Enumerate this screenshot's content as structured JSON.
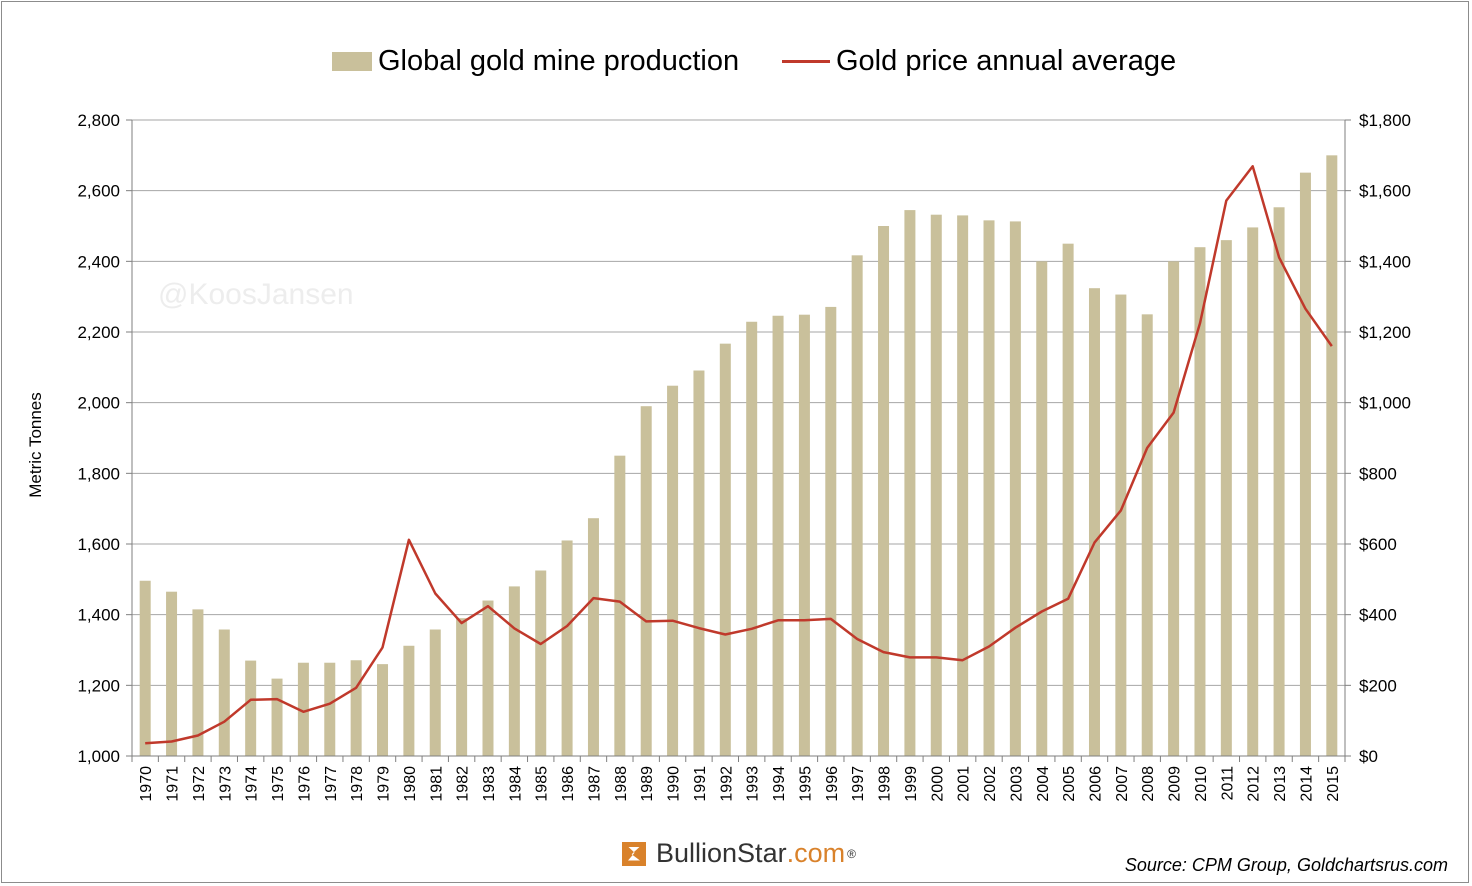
{
  "legend": {
    "bar_label": "Global gold mine production",
    "line_label": "Gold price annual average"
  },
  "watermark": "@KoosJansen",
  "logo": {
    "name": "BullionStar",
    "suffix": ".com",
    "mark": "®"
  },
  "source": "Source: CPM Group, Goldchartsrus.com",
  "colors": {
    "bars": "#c9c09b",
    "line": "#c0392b",
    "grid": "#a6a6a6"
  },
  "chart_data": {
    "type": "bar",
    "title": "",
    "ylabel": "Metric Tonnes",
    "ylabel_right": "",
    "ylim": [
      1000,
      2800
    ],
    "ylim_right": [
      0,
      1800
    ],
    "y_ticks": [
      "1,000",
      "1,200",
      "1,400",
      "1,600",
      "1,800",
      "2,000",
      "2,200",
      "2,400",
      "2,600",
      "2,800"
    ],
    "y_ticks_right": [
      "$0",
      "$200",
      "$400",
      "$600",
      "$800",
      "$1,000",
      "$1,200",
      "$1,400",
      "$1,600",
      "$1,800"
    ],
    "grid": true,
    "legend_position": "top",
    "categories": [
      "1970",
      "1971",
      "1972",
      "1973",
      "1974",
      "1975",
      "1976",
      "1977",
      "1978",
      "1979",
      "1980",
      "1981",
      "1982",
      "1983",
      "1984",
      "1985",
      "1986",
      "1987",
      "1988",
      "1989",
      "1990",
      "1991",
      "1992",
      "1993",
      "1994",
      "1995",
      "1996",
      "1997",
      "1998",
      "1999",
      "2000",
      "2001",
      "2002",
      "2003",
      "2004",
      "2005",
      "2006",
      "2007",
      "2008",
      "2009",
      "2010",
      "2011",
      "2012",
      "2013",
      "2014",
      "2015"
    ],
    "series": [
      {
        "name": "Global gold mine production",
        "type": "bar",
        "axis": "left",
        "values": [
          1496,
          1465,
          1415,
          1358,
          1270,
          1219,
          1264,
          1264,
          1271,
          1260,
          1312,
          1358,
          1390,
          1440,
          1480,
          1525,
          1610,
          1673,
          1850,
          1990,
          2048,
          2091,
          2167,
          2229,
          2246,
          2249,
          2271,
          2417,
          2500,
          2545,
          2532,
          2530,
          2516,
          2513,
          2400,
          2450,
          2324,
          2306,
          2250,
          2400,
          2440,
          2460,
          2496,
          2553,
          2651,
          2700
        ]
      },
      {
        "name": "Gold price annual average",
        "type": "line",
        "axis": "right",
        "values": [
          36,
          41,
          58,
          97,
          159,
          161,
          125,
          148,
          193,
          307,
          612,
          460,
          376,
          424,
          361,
          317,
          368,
          447,
          437,
          381,
          383,
          362,
          344,
          360,
          384,
          384,
          388,
          331,
          294,
          279,
          279,
          271,
          310,
          363,
          409,
          445,
          604,
          695,
          872,
          972,
          1225,
          1572,
          1669,
          1411,
          1266,
          1160
        ]
      }
    ]
  }
}
